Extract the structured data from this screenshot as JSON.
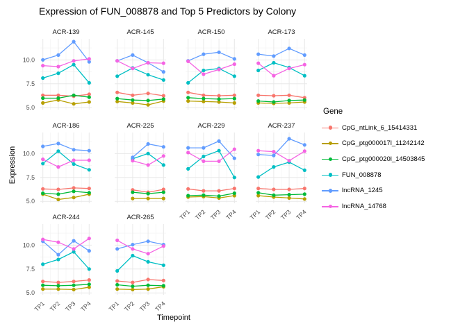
{
  "figure": {
    "title": "Expression of FUN_008878 and Top 5 Predictors by Colony",
    "xlabel": "Timepoint",
    "ylabel": "Expression",
    "legend_title": "Gene",
    "background_color": "#ffffff",
    "grid_major_color": "#e8e8e8",
    "grid_minor_color": "#f2f2f2",
    "tick_label_color": "#4d4d4d",
    "strip_label_color": "#1a1a1a"
  },
  "chart_data": {
    "type": "line",
    "title": "Expression of FUN_008878 and Top 5 Predictors by Colony",
    "xlabel": "Timepoint",
    "ylabel": "Expression",
    "legend_title": "Gene",
    "legend_position": "right",
    "grid": true,
    "x_ticks": [
      "TP1",
      "TP2",
      "TP3",
      "TP4"
    ],
    "y_ticks": [
      "5.0",
      "7.5",
      "10.0"
    ],
    "y_tick_values": [
      5.0,
      7.5,
      10.0
    ],
    "y_minor_values": [
      6.25,
      8.75,
      11.25
    ],
    "ylim": [
      4.8,
      12.2
    ],
    "series": [
      {
        "name": "CpG_ntLink_6_15414331",
        "color": "#F8766D"
      },
      {
        "name": "CpG_ptg000017l_11242142",
        "color": "#B79F00"
      },
      {
        "name": "CpG_ptg000020l_14503845",
        "color": "#00BA38"
      },
      {
        "name": "FUN_008878",
        "color": "#00BFC4"
      },
      {
        "name": "lncRNA_1245",
        "color": "#619CFF"
      },
      {
        "name": "lncRNA_14768",
        "color": "#F564E3"
      }
    ],
    "facets": [
      {
        "name": "ACR-139",
        "values": [
          [
            6.3,
            6.3,
            6.2,
            6.4
          ],
          [
            5.5,
            5.8,
            5.4,
            5.6
          ],
          [
            6.0,
            6.0,
            6.3,
            6.1
          ],
          [
            8.1,
            8.6,
            9.5,
            7.6
          ],
          [
            10.0,
            10.5,
            11.9,
            9.8
          ],
          [
            9.4,
            9.3,
            9.9,
            10.1
          ]
        ]
      },
      {
        "name": "ACR-145",
        "values": [
          [
            6.6,
            6.3,
            6.5,
            6.25
          ],
          [
            5.65,
            5.5,
            5.3,
            5.7
          ],
          [
            5.95,
            5.8,
            5.75,
            5.9
          ],
          [
            8.3,
            9.15,
            8.45,
            7.9
          ],
          [
            9.9,
            10.5,
            9.7,
            8.75
          ],
          [
            9.9,
            9.1,
            9.7,
            9.65
          ]
        ]
      },
      {
        "name": "ACR-150",
        "values": [
          [
            6.6,
            6.3,
            6.25,
            6.3
          ],
          [
            5.7,
            5.65,
            5.6,
            5.5
          ],
          [
            6.05,
            5.95,
            5.9,
            5.95
          ],
          [
            7.6,
            8.9,
            9.1,
            8.3
          ],
          [
            9.9,
            10.6,
            10.8,
            10.1
          ],
          [
            9.85,
            8.5,
            9.0,
            9.55
          ]
        ]
      },
      {
        "name": "ACR-173",
        "values": [
          [
            6.3,
            6.25,
            6.3,
            6.05
          ],
          [
            5.5,
            5.45,
            5.5,
            5.6
          ],
          [
            5.7,
            5.6,
            5.75,
            5.8
          ],
          [
            8.9,
            9.7,
            9.2,
            8.35
          ],
          [
            10.6,
            10.4,
            11.2,
            10.5
          ],
          [
            9.65,
            8.35,
            9.1,
            9.5
          ]
        ]
      },
      {
        "name": "ACR-186",
        "values": [
          [
            6.3,
            6.25,
            6.4,
            6.35
          ],
          [
            5.75,
            5.2,
            5.4,
            5.75
          ],
          [
            5.85,
            5.75,
            6.05,
            5.9
          ],
          [
            8.95,
            10.25,
            8.9,
            8.3
          ],
          [
            10.75,
            11.05,
            10.4,
            10.3
          ],
          [
            9.4,
            8.6,
            9.3,
            9.3
          ]
        ]
      },
      {
        "name": "ACR-225",
        "values": [
          [
            null,
            6.2,
            5.95,
            6.25
          ],
          [
            null,
            5.3,
            5.3,
            5.3
          ],
          [
            null,
            5.95,
            5.8,
            5.95
          ],
          [
            null,
            9.45,
            10.0,
            8.8
          ],
          [
            null,
            9.6,
            11.0,
            10.7
          ],
          [
            null,
            9.25,
            8.8,
            9.75
          ]
        ]
      },
      {
        "name": "ACR-229",
        "values": [
          [
            6.3,
            6.1,
            6.1,
            6.35
          ],
          [
            5.45,
            5.5,
            5.35,
            5.6
          ],
          [
            5.6,
            5.65,
            5.55,
            5.85
          ],
          [
            8.4,
            9.7,
            10.3,
            7.5
          ],
          [
            10.6,
            10.6,
            11.3,
            9.5
          ],
          [
            10.1,
            9.2,
            9.2,
            10.45
          ]
        ]
      },
      {
        "name": "ACR-237",
        "values": [
          [
            6.35,
            6.25,
            6.25,
            6.35
          ],
          [
            5.6,
            5.45,
            5.35,
            5.25
          ],
          [
            5.9,
            5.65,
            5.7,
            5.75
          ],
          [
            7.55,
            8.6,
            9.1,
            8.25
          ],
          [
            9.9,
            9.8,
            11.55,
            10.9
          ],
          [
            10.3,
            10.2,
            9.25,
            10.25
          ]
        ]
      },
      {
        "name": "ACR-244",
        "values": [
          [
            6.2,
            6.1,
            6.2,
            6.35
          ],
          [
            5.4,
            5.4,
            5.35,
            5.6
          ],
          [
            5.8,
            5.75,
            5.8,
            5.9
          ],
          [
            8.0,
            8.5,
            9.3,
            7.5
          ],
          [
            10.4,
            9.0,
            10.45,
            9.4
          ],
          [
            10.6,
            10.3,
            9.6,
            10.7
          ]
        ]
      },
      {
        "name": "ACR-265",
        "values": [
          [
            6.25,
            6.1,
            6.4,
            6.3
          ],
          [
            5.4,
            5.35,
            5.4,
            5.65
          ],
          [
            5.85,
            5.7,
            5.8,
            5.75
          ],
          [
            7.3,
            8.9,
            8.25,
            7.9
          ],
          [
            9.6,
            10.05,
            10.4,
            10.05
          ],
          [
            10.5,
            9.6,
            9.1,
            9.9
          ]
        ]
      }
    ],
    "facets_with_x_labels": [
      "ACR-229",
      "ACR-237",
      "ACR-244",
      "ACR-265"
    ]
  }
}
